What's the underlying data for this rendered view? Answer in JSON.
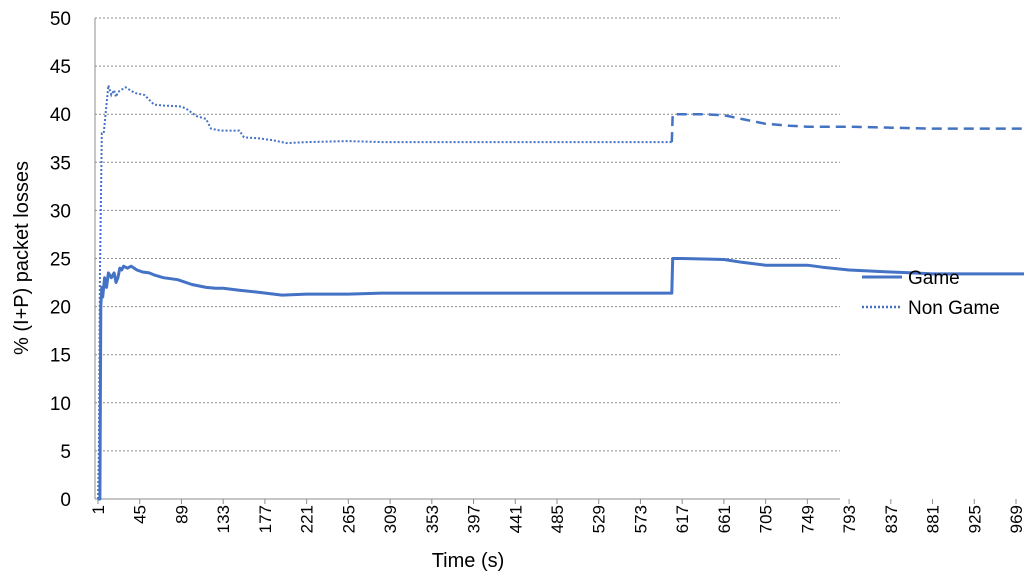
{
  "chart_data": {
    "type": "line",
    "title": "",
    "xlabel": "Time (s)",
    "ylabel": "% (I+P) packet losses",
    "ylim": [
      0,
      50
    ],
    "yticks": [
      0,
      5,
      10,
      15,
      20,
      25,
      30,
      35,
      40,
      45,
      50
    ],
    "xlim": [
      1,
      1000
    ],
    "xticks": [
      1,
      45,
      89,
      133,
      177,
      221,
      265,
      309,
      353,
      397,
      441,
      485,
      529,
      573,
      617,
      661,
      705,
      749,
      793,
      837,
      881,
      925,
      969
    ],
    "grid": "horizontal dashed",
    "legend_position": "right",
    "series": [
      {
        "name": "Game",
        "style": "solid",
        "color": "#4472C4",
        "points": [
          [
            1,
            0
          ],
          [
            3,
            0
          ],
          [
            4,
            20
          ],
          [
            5,
            22
          ],
          [
            6,
            21
          ],
          [
            8,
            23
          ],
          [
            10,
            22
          ],
          [
            12,
            23.5
          ],
          [
            15,
            23
          ],
          [
            18,
            23.5
          ],
          [
            20,
            22.5
          ],
          [
            22,
            23
          ],
          [
            24,
            24
          ],
          [
            26,
            23.8
          ],
          [
            28,
            24.2
          ],
          [
            32,
            24
          ],
          [
            36,
            24.2
          ],
          [
            42,
            23.8
          ],
          [
            48,
            23.6
          ],
          [
            55,
            23.5
          ],
          [
            60,
            23.3
          ],
          [
            70,
            23
          ],
          [
            85,
            22.8
          ],
          [
            100,
            22.3
          ],
          [
            115,
            22
          ],
          [
            125,
            21.9
          ],
          [
            133,
            21.9
          ],
          [
            150,
            21.7
          ],
          [
            170,
            21.5
          ],
          [
            195,
            21.2
          ],
          [
            221,
            21.3
          ],
          [
            265,
            21.3
          ],
          [
            300,
            21.4
          ],
          [
            350,
            21.4
          ],
          [
            400,
            21.4
          ],
          [
            450,
            21.4
          ],
          [
            500,
            21.4
          ],
          [
            550,
            21.4
          ],
          [
            606,
            21.4
          ],
          [
            607,
            25
          ],
          [
            617,
            25
          ],
          [
            640,
            24.95
          ],
          [
            661,
            24.9
          ],
          [
            680,
            24.6
          ],
          [
            705,
            24.3
          ],
          [
            749,
            24.3
          ],
          [
            765,
            24.1
          ],
          [
            793,
            23.8
          ],
          [
            837,
            23.6
          ],
          [
            860,
            23.5
          ],
          [
            881,
            23.4
          ],
          [
            925,
            23.4
          ],
          [
            969,
            23.4
          ],
          [
            1000,
            23.4
          ]
        ]
      },
      {
        "name": "Non Game",
        "style": "dotted-then-dashed",
        "color": "#4472C4",
        "points": [
          [
            1,
            0
          ],
          [
            2,
            5
          ],
          [
            3,
            23
          ],
          [
            4,
            30
          ],
          [
            5,
            38
          ],
          [
            7,
            38
          ],
          [
            10,
            41
          ],
          [
            12,
            43
          ],
          [
            15,
            42
          ],
          [
            18,
            42.5
          ],
          [
            20,
            41.8
          ],
          [
            22,
            42.3
          ],
          [
            25,
            42.5
          ],
          [
            30,
            42.8
          ],
          [
            35,
            42.5
          ],
          [
            40,
            42.2
          ],
          [
            50,
            42
          ],
          [
            55,
            41.5
          ],
          [
            60,
            41
          ],
          [
            70,
            40.9
          ],
          [
            89,
            40.8
          ],
          [
            95,
            40.5
          ],
          [
            105,
            39.8
          ],
          [
            115,
            39.5
          ],
          [
            120,
            38.5
          ],
          [
            130,
            38.3
          ],
          [
            150,
            38.3
          ],
          [
            155,
            37.6
          ],
          [
            170,
            37.5
          ],
          [
            185,
            37.3
          ],
          [
            200,
            37.0
          ],
          [
            221,
            37.1
          ],
          [
            265,
            37.2
          ],
          [
            300,
            37.1
          ],
          [
            350,
            37.1
          ],
          [
            400,
            37.1
          ],
          [
            450,
            37.1
          ],
          [
            500,
            37.1
          ],
          [
            550,
            37.1
          ],
          [
            606,
            37.1
          ],
          [
            607,
            40
          ],
          [
            617,
            40
          ],
          [
            640,
            40
          ],
          [
            661,
            39.9
          ],
          [
            680,
            39.5
          ],
          [
            705,
            39
          ],
          [
            730,
            38.8
          ],
          [
            749,
            38.7
          ],
          [
            793,
            38.7
          ],
          [
            837,
            38.6
          ],
          [
            881,
            38.5
          ],
          [
            925,
            38.5
          ],
          [
            969,
            38.5
          ],
          [
            1000,
            38.5
          ]
        ]
      }
    ]
  }
}
